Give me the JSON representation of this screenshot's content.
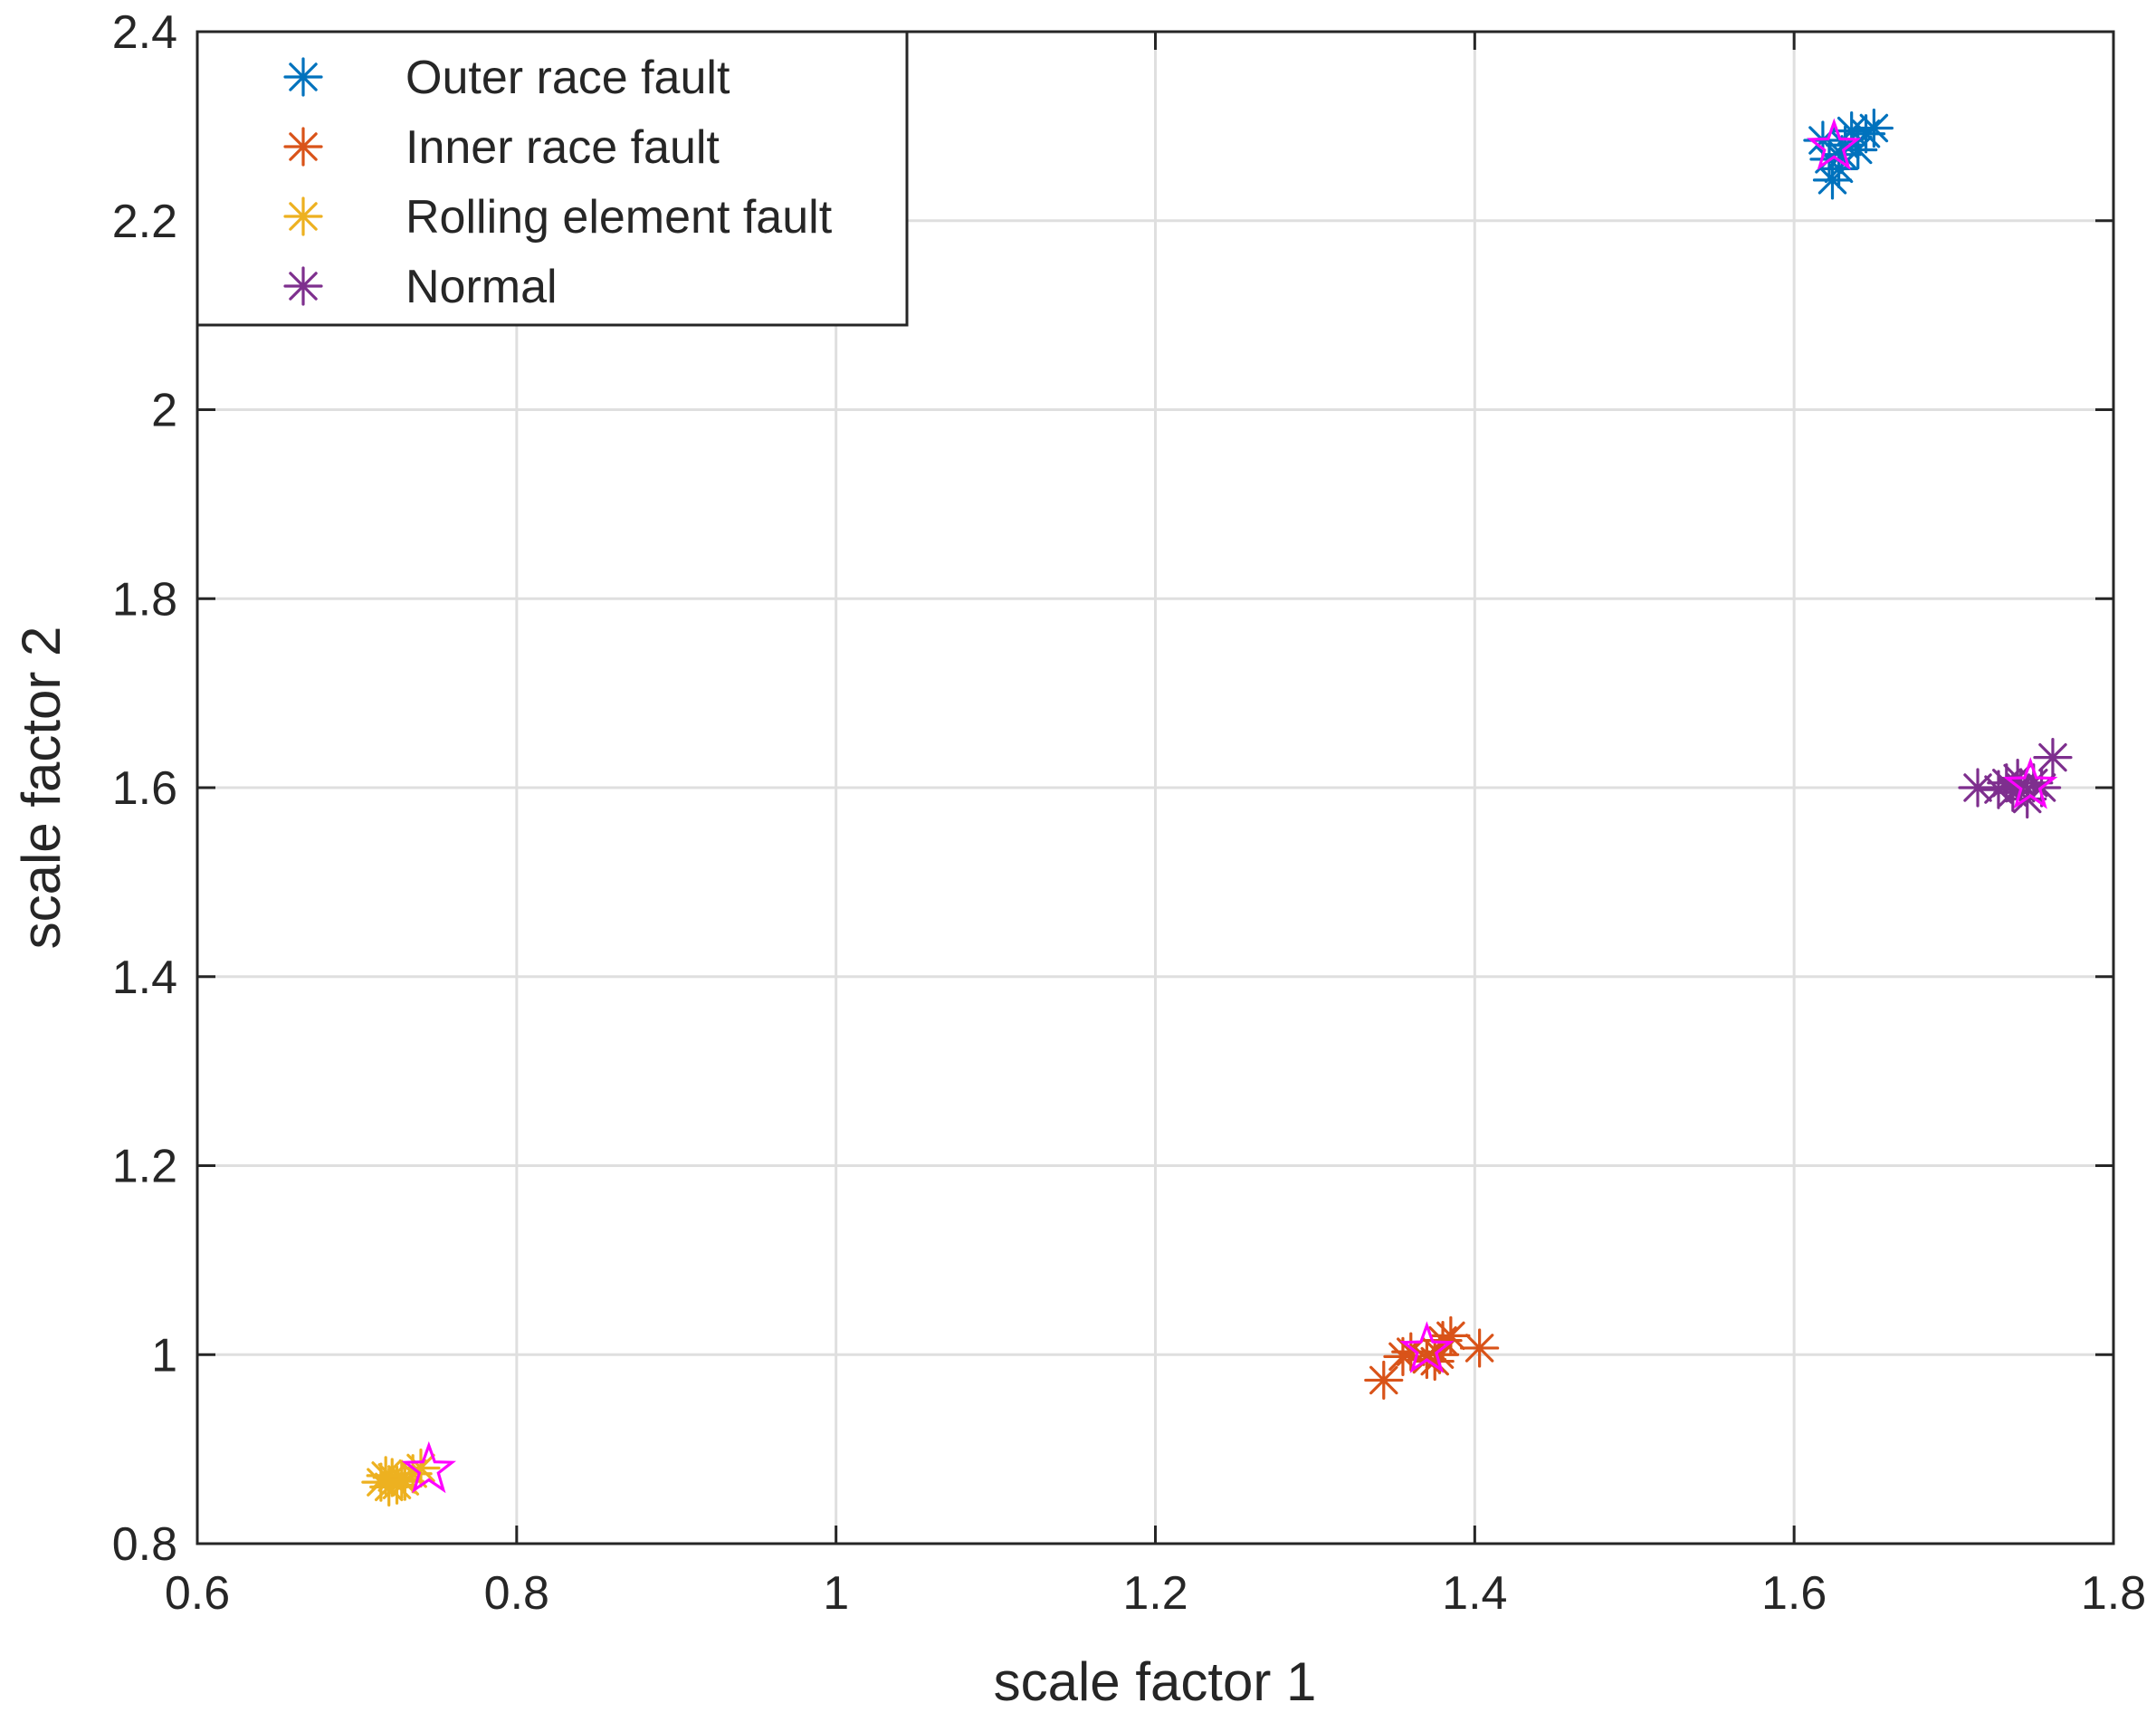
{
  "chart_data": {
    "type": "scatter",
    "title": "",
    "xlabel": "scale factor 1",
    "ylabel": "scale factor 2",
    "xlim": [
      0.6,
      1.8
    ],
    "ylim": [
      0.8,
      2.4
    ],
    "xticks": [
      0.6,
      0.8,
      1,
      1.2,
      1.4,
      1.6,
      1.8
    ],
    "xtick_labels": [
      "0.6",
      "0.8",
      "1",
      "1.2",
      "1.4",
      "1.6",
      "1.8"
    ],
    "yticks": [
      0.8,
      1,
      1.2,
      1.4,
      1.6,
      1.8,
      2,
      2.2,
      2.4
    ],
    "ytick_labels": [
      "0.8",
      "1",
      "1.2",
      "1.4",
      "1.6",
      "1.8",
      "2",
      "2.2",
      "2.4"
    ],
    "grid": true,
    "legend_position": "top-left",
    "series": [
      {
        "name": "Outer race fault",
        "color": "#0072BD",
        "marker": "asterisk",
        "points": [
          [
            1.618,
            2.285
          ],
          [
            1.624,
            2.243
          ],
          [
            1.628,
            2.255
          ],
          [
            1.632,
            2.28
          ],
          [
            1.636,
            2.295
          ],
          [
            1.64,
            2.275
          ],
          [
            1.645,
            2.292
          ],
          [
            1.65,
            2.298
          ],
          [
            1.622,
            2.265
          ],
          [
            1.63,
            2.27
          ]
        ]
      },
      {
        "name": "Inner race fault",
        "color": "#D95319",
        "marker": "asterisk",
        "points": [
          [
            1.343,
            0.973
          ],
          [
            1.355,
            0.998
          ],
          [
            1.36,
            1.003
          ],
          [
            1.37,
            0.995
          ],
          [
            1.375,
            0.993
          ],
          [
            1.38,
            1.015
          ],
          [
            1.385,
            1.02
          ],
          [
            1.403,
            1.007
          ],
          [
            1.378,
            1.0
          ]
        ]
      },
      {
        "name": "Rolling element fault",
        "color": "#EDB120",
        "marker": "asterisk",
        "points": [
          [
            0.715,
            0.865
          ],
          [
            0.72,
            0.86
          ],
          [
            0.722,
            0.87
          ],
          [
            0.725,
            0.862
          ],
          [
            0.728,
            0.868
          ],
          [
            0.73,
            0.866
          ],
          [
            0.735,
            0.874
          ],
          [
            0.74,
            0.88
          ],
          [
            0.718,
            0.872
          ]
        ]
      },
      {
        "name": "Normal",
        "color": "#7E2F8E",
        "marker": "asterisk",
        "points": [
          [
            1.715,
            1.6
          ],
          [
            1.728,
            1.598
          ],
          [
            1.733,
            1.605
          ],
          [
            1.737,
            1.595
          ],
          [
            1.742,
            1.6
          ],
          [
            1.746,
            1.588
          ],
          [
            1.75,
            1.605
          ],
          [
            1.755,
            1.6
          ],
          [
            1.762,
            1.632
          ],
          [
            1.74,
            1.61
          ]
        ]
      }
    ],
    "centroids": {
      "color": "#FF00FF",
      "marker": "pentagram",
      "points": [
        [
          1.625,
          2.278
        ],
        [
          1.37,
          1.005
        ],
        [
          0.745,
          0.878
        ],
        [
          1.748,
          1.602
        ]
      ]
    }
  }
}
